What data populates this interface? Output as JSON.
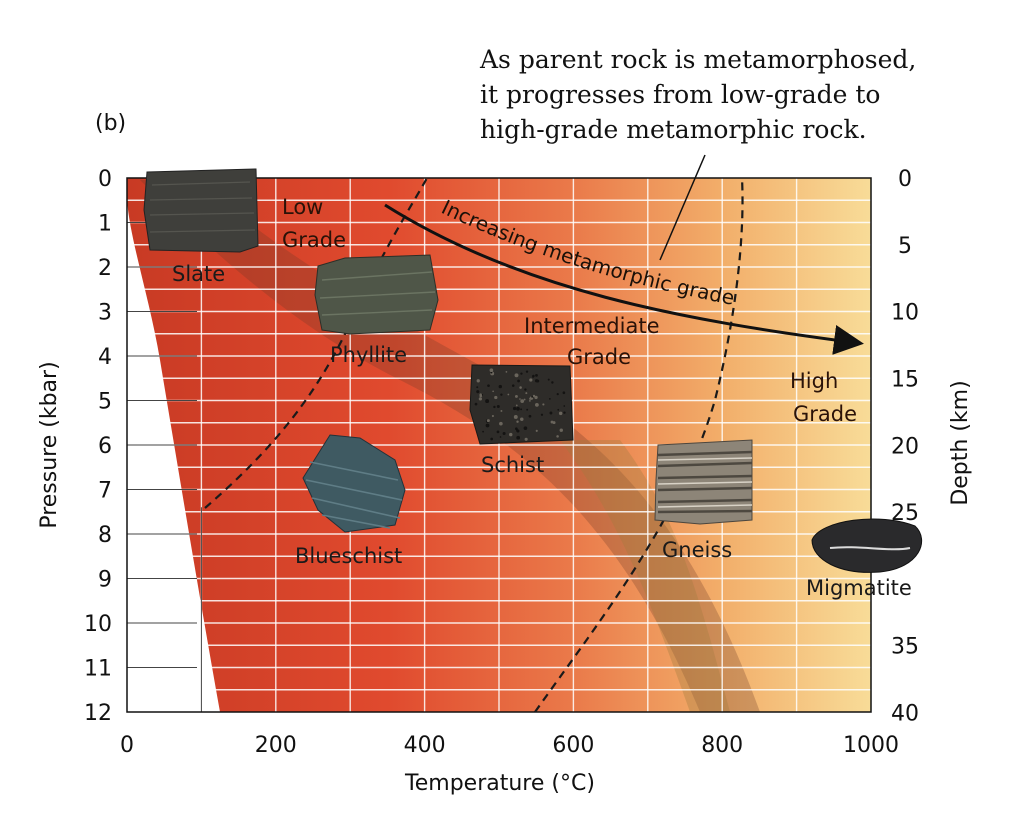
{
  "panel_label": "(b)",
  "annotation": {
    "lines": [
      "As parent rock is metamorphosed,",
      "it progresses from low-grade to",
      "high-grade metamorphic rock."
    ]
  },
  "arrow_label": "Increasing metamorphic grade",
  "axes": {
    "x": {
      "label": "Temperature (°C)",
      "min": 0,
      "max": 1000,
      "ticks": [
        "0",
        "200",
        "400",
        "600",
        "800",
        "1000"
      ]
    },
    "y_left": {
      "label": "Pressure (kbar)",
      "min": 0,
      "max": 12,
      "ticks": [
        "0",
        "1",
        "2",
        "3",
        "4",
        "5",
        "6",
        "7",
        "8",
        "9",
        "10",
        "11",
        "12"
      ]
    },
    "y_right": {
      "label": "Depth (km)",
      "ticks": [
        "0",
        "5",
        "10",
        "15",
        "20",
        "25",
        "35",
        "40"
      ]
    }
  },
  "zones": {
    "low": {
      "line1": "Low",
      "line2": "Grade"
    },
    "intermediate": {
      "line1": "Intermediate",
      "line2": "Grade"
    },
    "high": {
      "line1": "High",
      "line2": "Grade"
    }
  },
  "rocks": [
    {
      "id": "slate",
      "label": "Slate",
      "color": "#3f3f3b"
    },
    {
      "id": "phyllite",
      "label": "Phyllite",
      "color": "#4f5648"
    },
    {
      "id": "schist",
      "label": "Schist",
      "color": "#2e2c29"
    },
    {
      "id": "blueschist",
      "label": "Blueschist",
      "color": "#3f5a62"
    },
    {
      "id": "gneiss",
      "label": "Gneiss",
      "color": "#8d8578"
    },
    {
      "id": "migmatite",
      "label": "Migmatite",
      "color": "#2a2a2c"
    }
  ],
  "colors": {
    "low_grade": "#e0452a",
    "mid_grade": "#e87040",
    "high_grade": "#f7d890",
    "gridline": "#ffffff",
    "boundary": "#1a1a1a"
  }
}
